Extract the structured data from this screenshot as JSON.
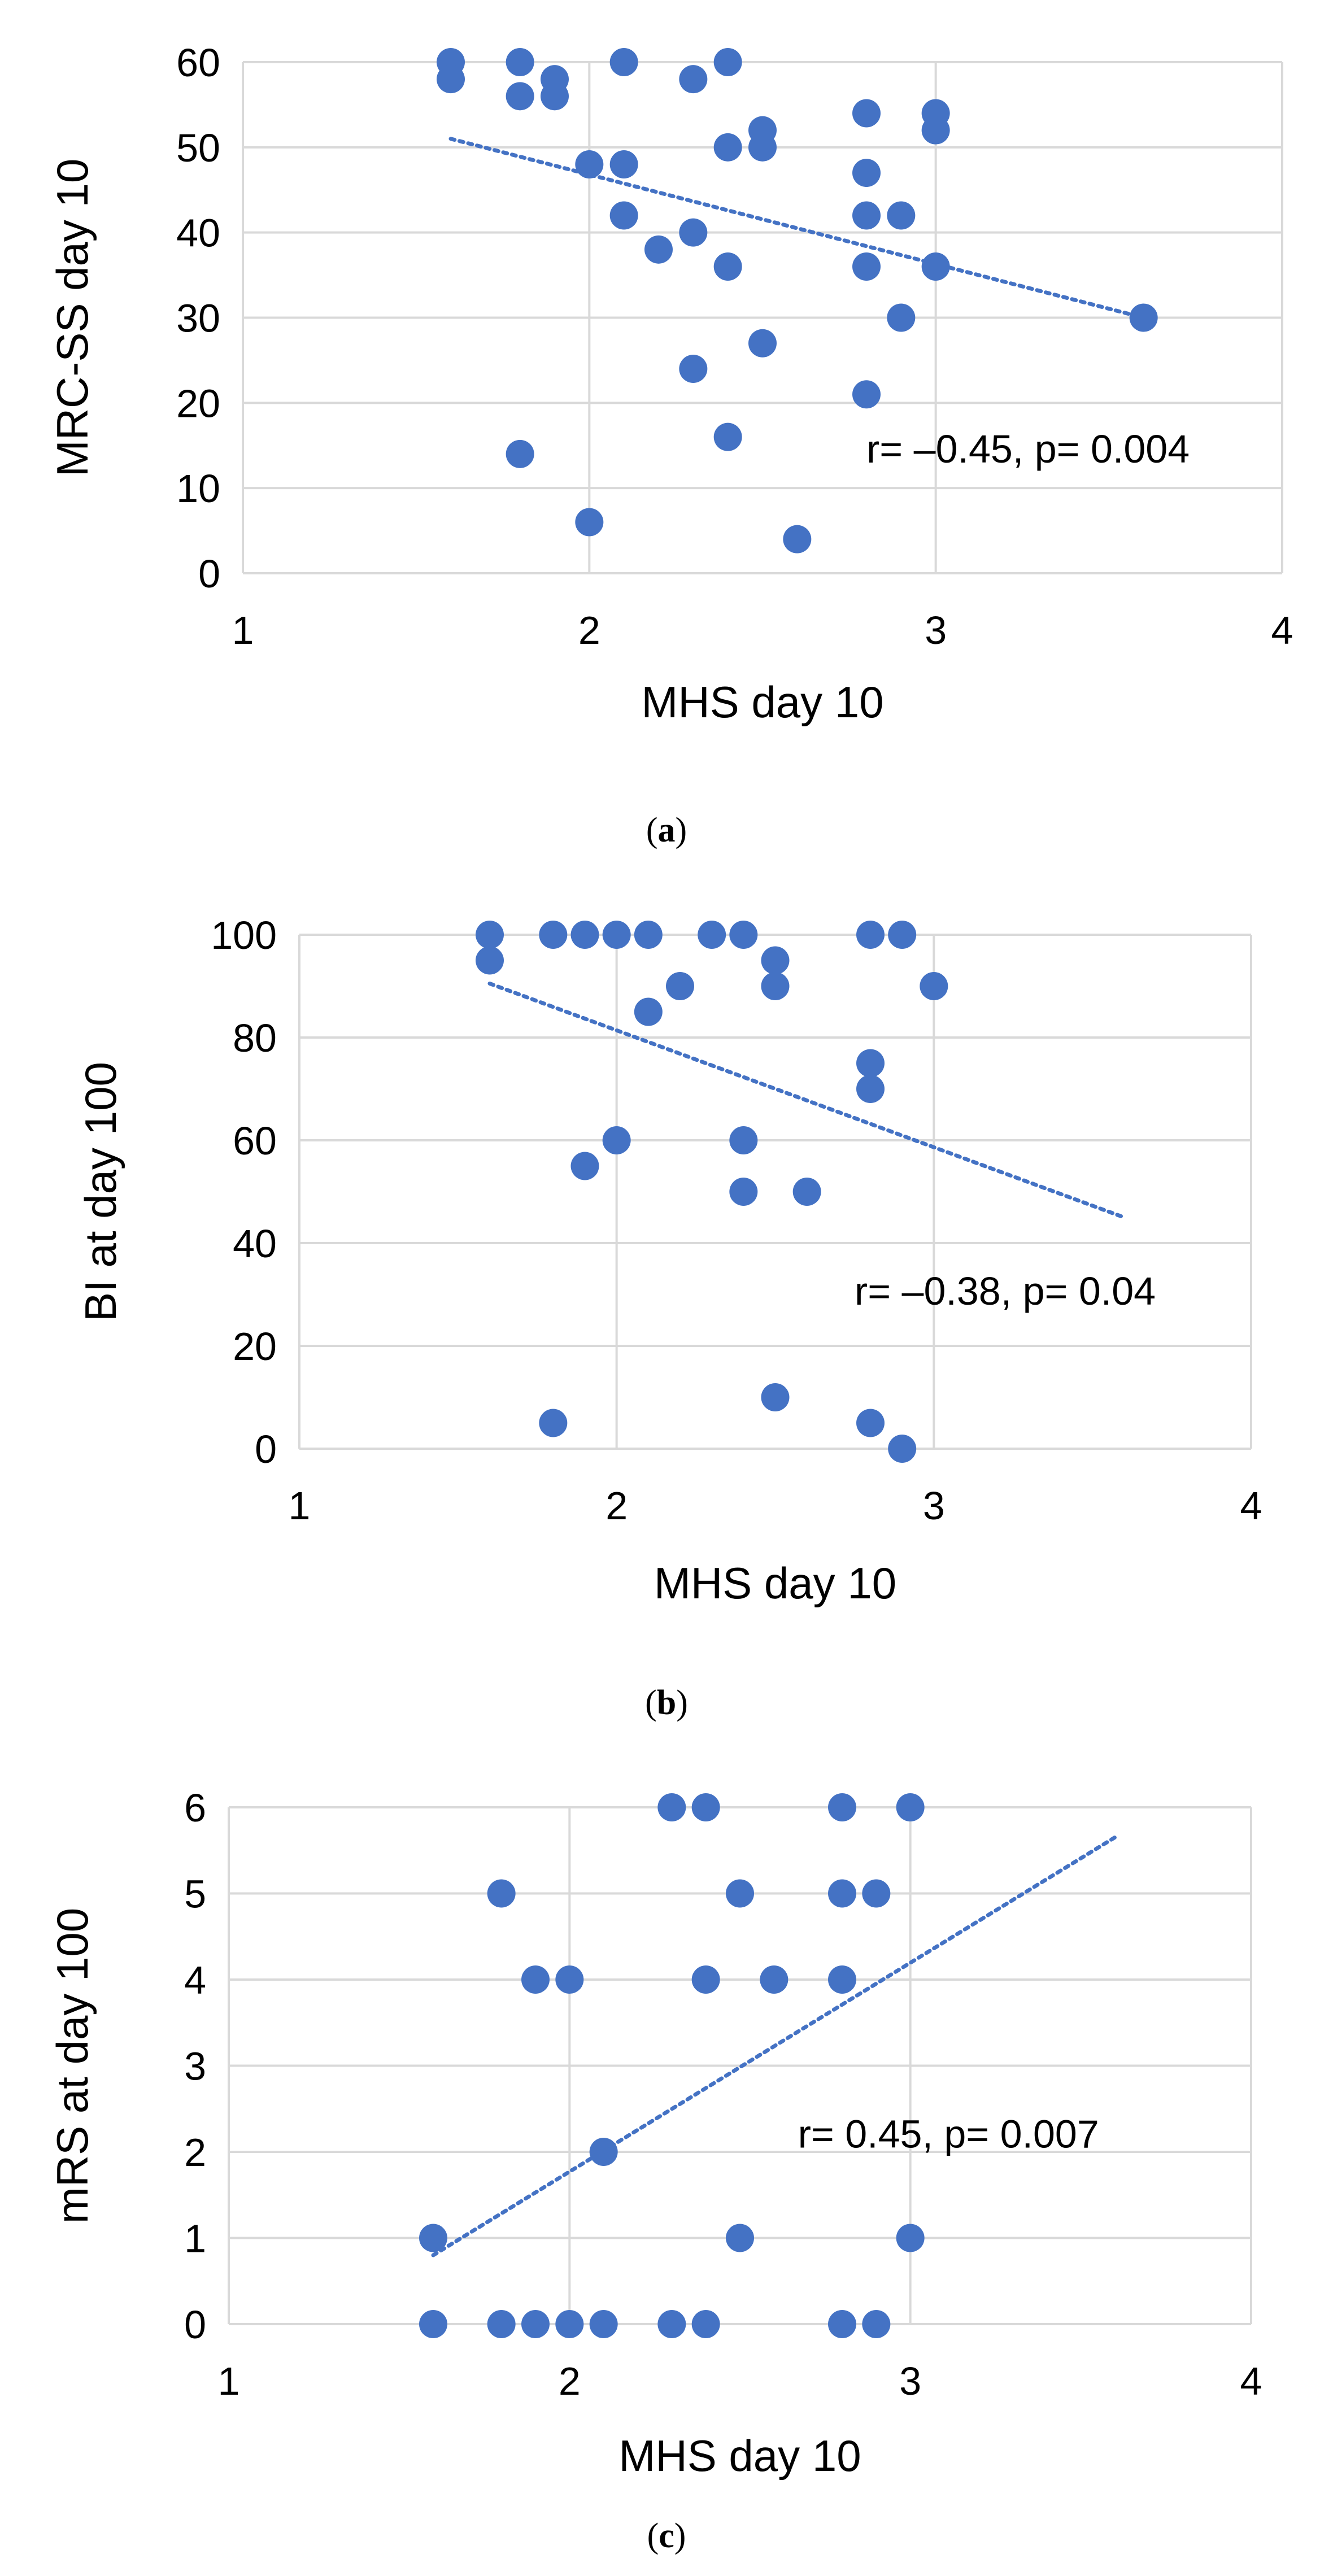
{
  "chart_data": [
    {
      "id": "a",
      "type": "scatter",
      "caption": "(a)",
      "caption_letter": "a",
      "xlabel": "MHS day 10",
      "ylabel": "MRC-SS day 10",
      "xlim": [
        1,
        4
      ],
      "ylim": [
        0,
        60
      ],
      "xticks": [
        1,
        2,
        3,
        4
      ],
      "yticks": [
        0,
        10,
        20,
        30,
        40,
        50,
        60
      ],
      "grid": true,
      "annotation": "r= –0.45, p= 0.004",
      "annotation_anchor": {
        "x": 2.8,
        "y": 13
      },
      "trendline": {
        "x": [
          1.6,
          3.6
        ],
        "y": [
          51,
          30
        ]
      },
      "points": [
        [
          1.6,
          60
        ],
        [
          1.6,
          58
        ],
        [
          1.8,
          60
        ],
        [
          1.8,
          56
        ],
        [
          1.9,
          58
        ],
        [
          1.9,
          56
        ],
        [
          2.1,
          60
        ],
        [
          2.3,
          58
        ],
        [
          2.4,
          60
        ],
        [
          2.5,
          52
        ],
        [
          2.4,
          50
        ],
        [
          2.5,
          50
        ],
        [
          2.0,
          48
        ],
        [
          2.1,
          48
        ],
        [
          2.1,
          42
        ],
        [
          2.3,
          40
        ],
        [
          2.2,
          38
        ],
        [
          2.4,
          36
        ],
        [
          2.8,
          54
        ],
        [
          3.0,
          54
        ],
        [
          3.0,
          52
        ],
        [
          2.8,
          47
        ],
        [
          2.8,
          42
        ],
        [
          2.9,
          42
        ],
        [
          2.8,
          36
        ],
        [
          3.0,
          36
        ],
        [
          2.9,
          30
        ],
        [
          3.6,
          30
        ],
        [
          2.5,
          27
        ],
        [
          2.3,
          24
        ],
        [
          2.8,
          21
        ],
        [
          2.4,
          16
        ],
        [
          1.8,
          14
        ],
        [
          2.0,
          6
        ],
        [
          2.6,
          4
        ]
      ]
    },
    {
      "id": "b",
      "type": "scatter",
      "caption": "(b)",
      "caption_letter": "b",
      "xlabel": "MHS day 10",
      "ylabel": "BI at day 100",
      "xlim": [
        1,
        4
      ],
      "ylim": [
        0,
        100
      ],
      "xticks": [
        1,
        2,
        3,
        4
      ],
      "yticks": [
        0,
        20,
        40,
        60,
        80,
        100
      ],
      "grid": true,
      "annotation": "r= –0.38, p= 0.04",
      "annotation_anchor": {
        "x": 2.75,
        "y": 28
      },
      "trendline": {
        "x": [
          1.6,
          3.6
        ],
        "y": [
          90.5,
          45
        ]
      },
      "points": [
        [
          1.6,
          100
        ],
        [
          1.6,
          95
        ],
        [
          1.8,
          100
        ],
        [
          1.9,
          100
        ],
        [
          2.0,
          100
        ],
        [
          2.1,
          100
        ],
        [
          2.3,
          100
        ],
        [
          2.4,
          100
        ],
        [
          2.8,
          100
        ],
        [
          2.9,
          100
        ],
        [
          2.5,
          95
        ],
        [
          2.5,
          90
        ],
        [
          2.2,
          90
        ],
        [
          3.0,
          90
        ],
        [
          2.1,
          85
        ],
        [
          2.8,
          75
        ],
        [
          2.8,
          70
        ],
        [
          2.0,
          60
        ],
        [
          2.4,
          60
        ],
        [
          1.9,
          55
        ],
        [
          2.4,
          50
        ],
        [
          2.6,
          50
        ],
        [
          2.5,
          10
        ],
        [
          1.8,
          5
        ],
        [
          2.8,
          5
        ],
        [
          2.9,
          0
        ]
      ]
    },
    {
      "id": "c",
      "type": "scatter",
      "caption": "(c)",
      "caption_letter": "c",
      "xlabel": "MHS day 10",
      "ylabel": "mRS at day 100",
      "xlim": [
        1,
        4
      ],
      "ylim": [
        0,
        6
      ],
      "xticks": [
        1,
        2,
        3,
        4
      ],
      "yticks": [
        0,
        1,
        2,
        3,
        4,
        5,
        6
      ],
      "grid": true,
      "annotation": "r= 0.45, p= 0.007",
      "annotation_anchor": {
        "x": 2.67,
        "y": 2.05
      },
      "trendline": {
        "x": [
          1.6,
          3.6
        ],
        "y": [
          0.8,
          5.65
        ]
      },
      "points": [
        [
          2.3,
          6
        ],
        [
          2.4,
          6
        ],
        [
          2.8,
          6
        ],
        [
          3.0,
          6
        ],
        [
          1.8,
          5
        ],
        [
          2.5,
          5
        ],
        [
          2.8,
          5
        ],
        [
          2.9,
          5
        ],
        [
          1.9,
          4
        ],
        [
          2.0,
          4
        ],
        [
          2.4,
          4
        ],
        [
          2.6,
          4
        ],
        [
          2.8,
          4
        ],
        [
          2.1,
          2
        ],
        [
          1.6,
          1
        ],
        [
          2.5,
          1
        ],
        [
          3.0,
          1
        ],
        [
          1.6,
          0
        ],
        [
          1.8,
          0
        ],
        [
          1.9,
          0
        ],
        [
          2.0,
          0
        ],
        [
          2.1,
          0
        ],
        [
          2.3,
          0
        ],
        [
          2.4,
          0
        ],
        [
          2.8,
          0
        ],
        [
          2.9,
          0
        ]
      ]
    }
  ],
  "colors": {
    "marker": "#4472C4",
    "trendline": "#4472C4",
    "grid": "#D9D9D9",
    "text": "#000000"
  }
}
